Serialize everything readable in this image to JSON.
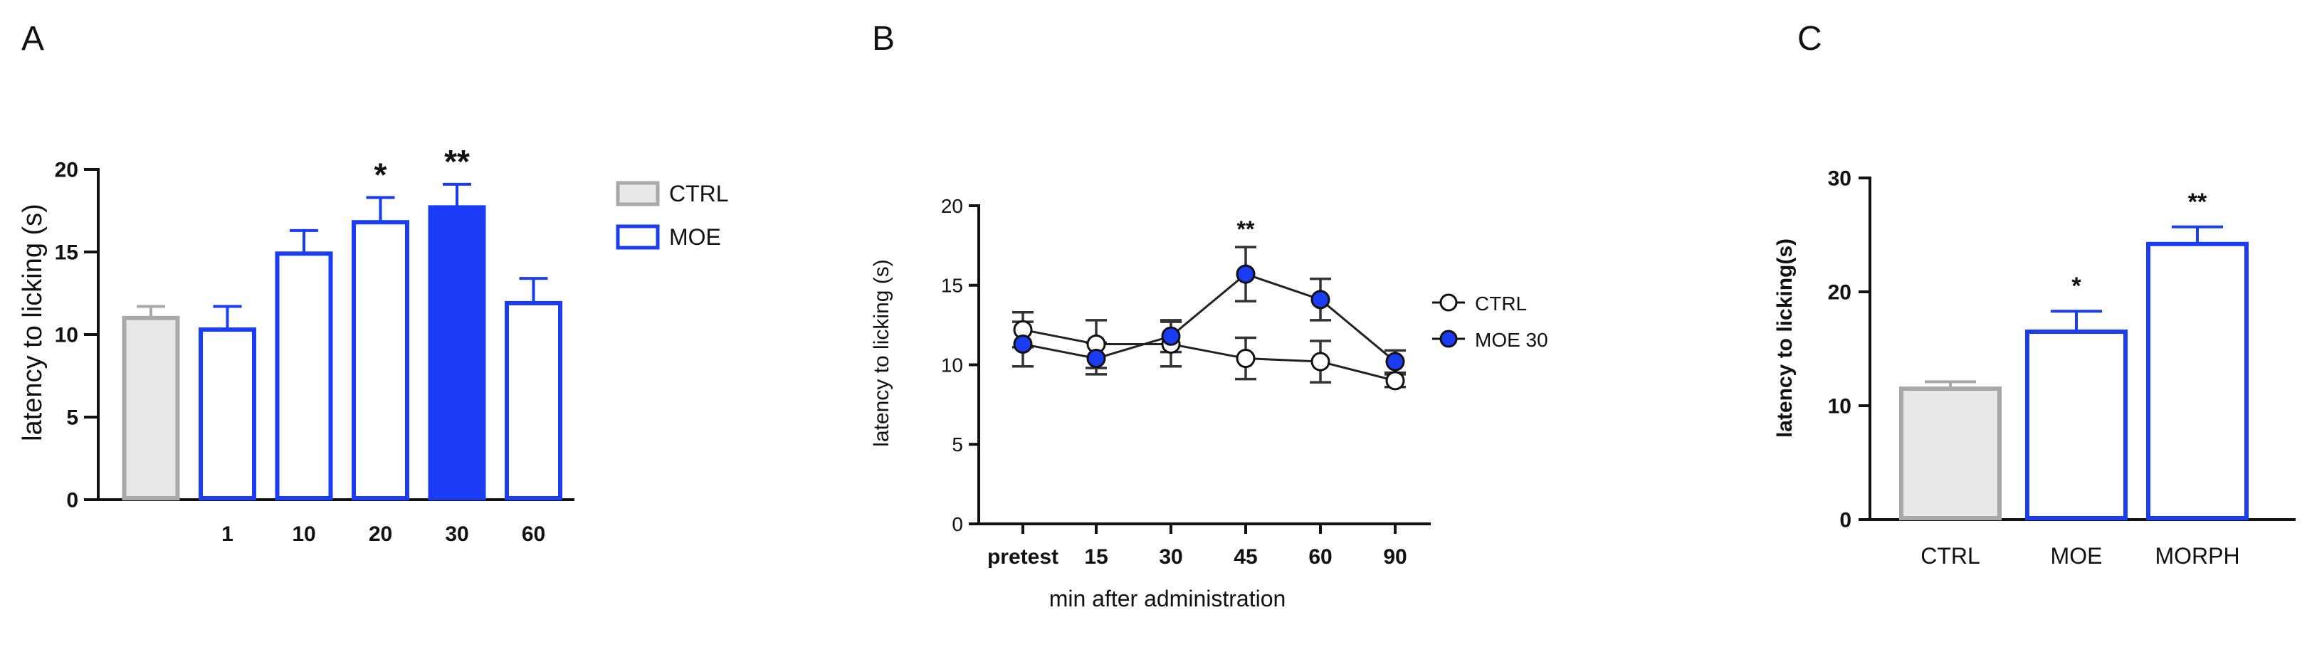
{
  "colors": {
    "ctrl_fill": "#e8e8e8",
    "ctrl_stroke": "#a8a8a8",
    "moe_blue": "#1a3cf5",
    "axis": "#111111",
    "text": "#111111"
  },
  "chart_data": [
    {
      "panel": "A",
      "type": "bar",
      "title": "",
      "xlabel": "",
      "ylabel": "latency to licking (s)",
      "ylim": [
        0,
        20
      ],
      "yticks": [
        0,
        5,
        10,
        15,
        20
      ],
      "categories": [
        "",
        "1",
        "10",
        "20",
        "30",
        "60"
      ],
      "series": [
        {
          "name": "CTRL",
          "values": [
            11.0,
            null,
            null,
            null,
            null,
            null
          ],
          "errors": [
            0.7,
            null,
            null,
            null,
            null,
            null
          ]
        },
        {
          "name": "MOE",
          "values": [
            null,
            10.3,
            14.9,
            16.8,
            17.7,
            11.9
          ],
          "errors": [
            null,
            1.4,
            1.4,
            1.5,
            1.4,
            1.5
          ],
          "filled": [
            false,
            false,
            false,
            false,
            true,
            false
          ]
        }
      ],
      "legend": [
        "CTRL",
        "MOE"
      ],
      "legend_position": "right",
      "annotations": [
        "",
        "",
        "",
        "*",
        "**",
        ""
      ]
    },
    {
      "panel": "B",
      "type": "line",
      "title": "",
      "xlabel": "min after administration",
      "ylabel": "latency to licking (s)",
      "ylim": [
        0,
        20
      ],
      "yticks": [
        0,
        5,
        10,
        15,
        20
      ],
      "categories": [
        "pretest",
        "15",
        "30",
        "45",
        "60",
        "90"
      ],
      "series": [
        {
          "name": "CTRL",
          "values": [
            12.2,
            11.3,
            11.3,
            10.4,
            10.2,
            9.0
          ],
          "errors": [
            1.1,
            1.5,
            1.4,
            1.3,
            1.3,
            0.4
          ]
        },
        {
          "name": "MOE 30",
          "values": [
            11.3,
            10.4,
            11.8,
            15.7,
            14.1,
            10.2
          ],
          "errors": [
            1.4,
            1.0,
            1.0,
            1.7,
            1.3,
            0.7
          ]
        }
      ],
      "legend": [
        "CTRL",
        "MOE 30"
      ],
      "legend_position": "right",
      "annotations": [
        "",
        "",
        "",
        "**",
        "",
        ""
      ]
    },
    {
      "panel": "C",
      "type": "bar",
      "title": "",
      "xlabel": "",
      "ylabel": "latency to licking(s)",
      "ylim": [
        0,
        30
      ],
      "yticks": [
        0,
        10,
        20,
        30
      ],
      "categories": [
        "CTRL",
        "MOE",
        "MORPH"
      ],
      "values": [
        11.5,
        16.5,
        24.2
      ],
      "errors": [
        0.6,
        1.8,
        1.5
      ],
      "annotations": [
        "",
        "*",
        "**"
      ]
    }
  ],
  "panel_letters": [
    "A",
    "B",
    "C"
  ]
}
